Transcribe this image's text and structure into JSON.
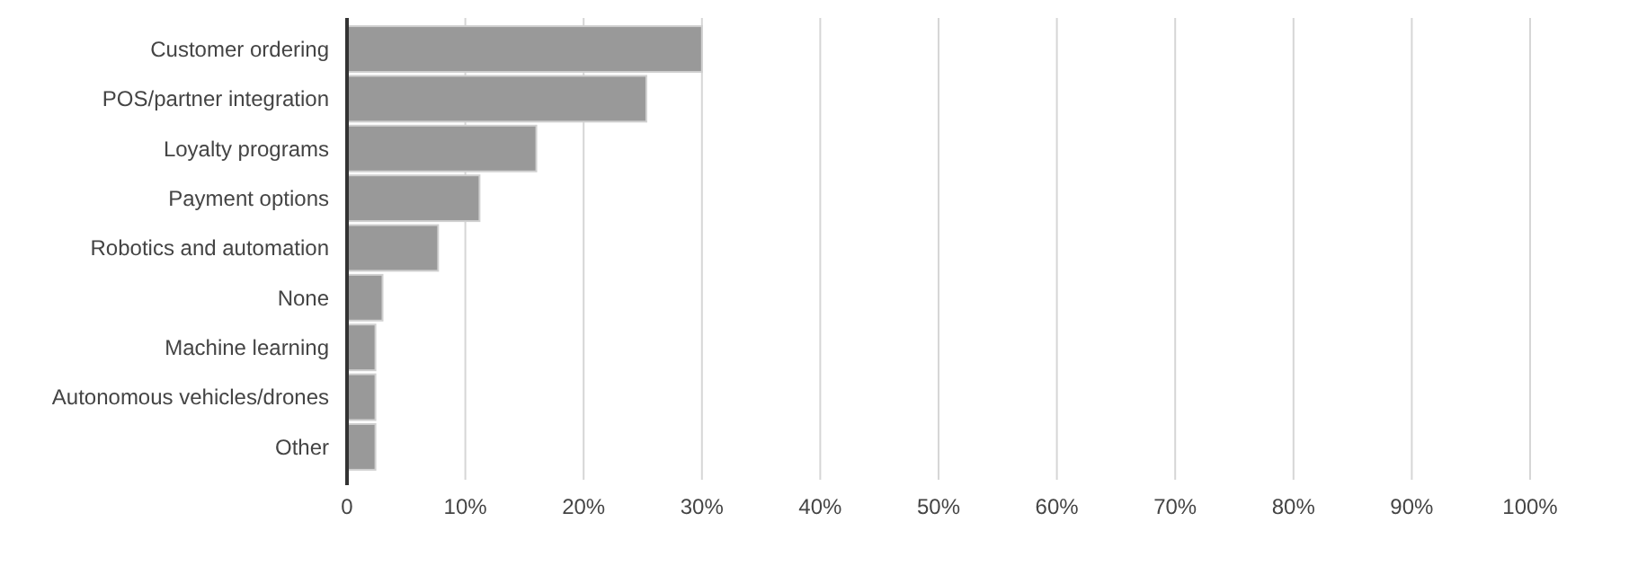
{
  "chart_data": {
    "type": "bar",
    "orientation": "horizontal",
    "categories": [
      "Customer ordering",
      "POS/partner integration",
      "Loyalty programs",
      "Payment options",
      "Robotics and automation",
      "None",
      "Machine learning",
      "Autonomous vehicles/drones",
      "Other"
    ],
    "values": [
      30,
      25.3,
      16,
      11.2,
      7.7,
      3,
      2.4,
      2.4,
      2.4
    ],
    "color": "#999999",
    "xlim": [
      0,
      100
    ],
    "xticks": [
      0,
      {
        "value": 10,
        "label": "10%"
      },
      {
        "value": 20,
        "label": "20%"
      },
      {
        "value": 30,
        "label": "30%"
      },
      {
        "value": 40,
        "label": "40%"
      },
      {
        "value": 50,
        "label": "50%"
      },
      {
        "value": 60,
        "label": "60%"
      },
      {
        "value": 70,
        "label": "70%"
      },
      {
        "value": 80,
        "label": "80%"
      },
      {
        "value": 90,
        "label": "90%"
      },
      {
        "value": 100,
        "label": "100%"
      }
    ],
    "grid": "x"
  }
}
